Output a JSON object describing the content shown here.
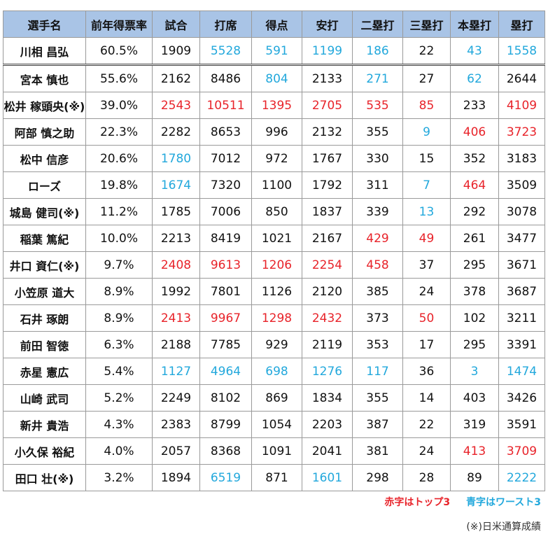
{
  "headers": [
    "選手名",
    "前年得票率",
    "試合",
    "打席",
    "得点",
    "安打",
    "二塁打",
    "三塁打",
    "本塁打",
    "塁打"
  ],
  "rows": [
    {
      "name": "川相 昌弘",
      "rate": "60.5%",
      "games": "1909",
      "pa": "5528",
      "runs": "591",
      "hits": "1199",
      "doubles": "186",
      "triples": "22",
      "hr": "43",
      "tb": "1558",
      "colors": {
        "games": "",
        "pa": "blue",
        "runs": "blue",
        "hits": "blue",
        "doubles": "blue",
        "triples": "",
        "hr": "blue",
        "tb": "blue"
      }
    },
    {
      "name": "宮本 慎也",
      "rate": "55.6%",
      "games": "2162",
      "pa": "8486",
      "runs": "804",
      "hits": "2133",
      "doubles": "271",
      "triples": "27",
      "hr": "62",
      "tb": "2644",
      "colors": {
        "games": "",
        "pa": "",
        "runs": "blue",
        "hits": "",
        "doubles": "blue",
        "triples": "",
        "hr": "blue",
        "tb": ""
      }
    },
    {
      "name": "松井 稼頭央(※)",
      "rate": "39.0%",
      "games": "2543",
      "pa": "10511",
      "runs": "1395",
      "hits": "2705",
      "doubles": "535",
      "triples": "85",
      "hr": "233",
      "tb": "4109",
      "colors": {
        "games": "red",
        "pa": "red",
        "runs": "red",
        "hits": "red",
        "doubles": "red",
        "triples": "red",
        "hr": "",
        "tb": "red"
      }
    },
    {
      "name": "阿部 慎之助",
      "rate": "22.3%",
      "games": "2282",
      "pa": "8653",
      "runs": "996",
      "hits": "2132",
      "doubles": "355",
      "triples": "9",
      "hr": "406",
      "tb": "3723",
      "colors": {
        "games": "",
        "pa": "",
        "runs": "",
        "hits": "",
        "doubles": "",
        "triples": "blue",
        "hr": "red",
        "tb": "red"
      }
    },
    {
      "name": "松中 信彦",
      "rate": "20.6%",
      "games": "1780",
      "pa": "7012",
      "runs": "972",
      "hits": "1767",
      "doubles": "330",
      "triples": "15",
      "hr": "352",
      "tb": "3183",
      "colors": {
        "games": "blue",
        "pa": "",
        "runs": "",
        "hits": "",
        "doubles": "",
        "triples": "",
        "hr": "",
        "tb": ""
      }
    },
    {
      "name": "ローズ",
      "rate": "19.8%",
      "games": "1674",
      "pa": "7320",
      "runs": "1100",
      "hits": "1792",
      "doubles": "311",
      "triples": "7",
      "hr": "464",
      "tb": "3509",
      "colors": {
        "games": "blue",
        "pa": "",
        "runs": "",
        "hits": "",
        "doubles": "",
        "triples": "blue",
        "hr": "red",
        "tb": ""
      }
    },
    {
      "name": "城島 健司(※)",
      "rate": "11.2%",
      "games": "1785",
      "pa": "7006",
      "runs": "850",
      "hits": "1837",
      "doubles": "339",
      "triples": "13",
      "hr": "292",
      "tb": "3078",
      "colors": {
        "games": "",
        "pa": "",
        "runs": "",
        "hits": "",
        "doubles": "",
        "triples": "blue",
        "hr": "",
        "tb": ""
      }
    },
    {
      "name": "稲葉 篤紀",
      "rate": "10.0%",
      "games": "2213",
      "pa": "8419",
      "runs": "1021",
      "hits": "2167",
      "doubles": "429",
      "triples": "49",
      "hr": "261",
      "tb": "3477",
      "colors": {
        "games": "",
        "pa": "",
        "runs": "",
        "hits": "",
        "doubles": "red",
        "triples": "red",
        "hr": "",
        "tb": ""
      }
    },
    {
      "name": "井口 資仁(※)",
      "rate": "9.7%",
      "games": "2408",
      "pa": "9613",
      "runs": "1206",
      "hits": "2254",
      "doubles": "458",
      "triples": "37",
      "hr": "295",
      "tb": "3671",
      "colors": {
        "games": "red",
        "pa": "red",
        "runs": "red",
        "hits": "red",
        "doubles": "red",
        "triples": "",
        "hr": "",
        "tb": ""
      }
    },
    {
      "name": "小笠原 道大",
      "rate": "8.9%",
      "games": "1992",
      "pa": "7801",
      "runs": "1126",
      "hits": "2120",
      "doubles": "385",
      "triples": "24",
      "hr": "378",
      "tb": "3687",
      "colors": {
        "games": "",
        "pa": "",
        "runs": "",
        "hits": "",
        "doubles": "",
        "triples": "",
        "hr": "",
        "tb": ""
      }
    },
    {
      "name": "石井 琢朗",
      "rate": "8.9%",
      "games": "2413",
      "pa": "9967",
      "runs": "1298",
      "hits": "2432",
      "doubles": "373",
      "triples": "50",
      "hr": "102",
      "tb": "3211",
      "colors": {
        "games": "red",
        "pa": "red",
        "runs": "red",
        "hits": "red",
        "doubles": "",
        "triples": "red",
        "hr": "",
        "tb": ""
      }
    },
    {
      "name": "前田 智徳",
      "rate": "6.3%",
      "games": "2188",
      "pa": "7785",
      "runs": "929",
      "hits": "2119",
      "doubles": "353",
      "triples": "17",
      "hr": "295",
      "tb": "3391",
      "colors": {
        "games": "",
        "pa": "",
        "runs": "",
        "hits": "",
        "doubles": "",
        "triples": "",
        "hr": "",
        "tb": ""
      }
    },
    {
      "name": "赤星 憲広",
      "rate": "5.4%",
      "games": "1127",
      "pa": "4964",
      "runs": "698",
      "hits": "1276",
      "doubles": "117",
      "triples": "36",
      "hr": "3",
      "tb": "1474",
      "colors": {
        "games": "blue",
        "pa": "blue",
        "runs": "blue",
        "hits": "blue",
        "doubles": "blue",
        "triples": "",
        "hr": "blue",
        "tb": "blue"
      }
    },
    {
      "name": "山崎 武司",
      "rate": "5.2%",
      "games": "2249",
      "pa": "8102",
      "runs": "869",
      "hits": "1834",
      "doubles": "355",
      "triples": "14",
      "hr": "403",
      "tb": "3426",
      "colors": {
        "games": "",
        "pa": "",
        "runs": "",
        "hits": "",
        "doubles": "",
        "triples": "",
        "hr": "",
        "tb": ""
      }
    },
    {
      "name": "新井 貴浩",
      "rate": "4.3%",
      "games": "2383",
      "pa": "8799",
      "runs": "1054",
      "hits": "2203",
      "doubles": "387",
      "triples": "22",
      "hr": "319",
      "tb": "3591",
      "colors": {
        "games": "",
        "pa": "",
        "runs": "",
        "hits": "",
        "doubles": "",
        "triples": "",
        "hr": "",
        "tb": ""
      }
    },
    {
      "name": "小久保 裕紀",
      "rate": "4.0%",
      "games": "2057",
      "pa": "8368",
      "runs": "1091",
      "hits": "2041",
      "doubles": "381",
      "triples": "24",
      "hr": "413",
      "tb": "3709",
      "colors": {
        "games": "",
        "pa": "",
        "runs": "",
        "hits": "",
        "doubles": "",
        "triples": "",
        "hr": "red",
        "tb": "red"
      }
    },
    {
      "name": "田口 壮(※)",
      "rate": "3.2%",
      "games": "1894",
      "pa": "6519",
      "runs": "871",
      "hits": "1601",
      "doubles": "298",
      "triples": "28",
      "hr": "89",
      "tb": "2222",
      "colors": {
        "games": "",
        "pa": "blue",
        "runs": "",
        "hits": "blue",
        "doubles": "",
        "triples": "",
        "hr": "",
        "tb": "blue"
      }
    }
  ],
  "legend": {
    "red_text": "赤字はトップ3",
    "blue_text": "青字はワースト3"
  },
  "footnote": "(※)日米通算成績",
  "colors": {
    "red": "#e8232a",
    "blue": "#22a8dc",
    "header_bg": "#a9c4e6"
  }
}
